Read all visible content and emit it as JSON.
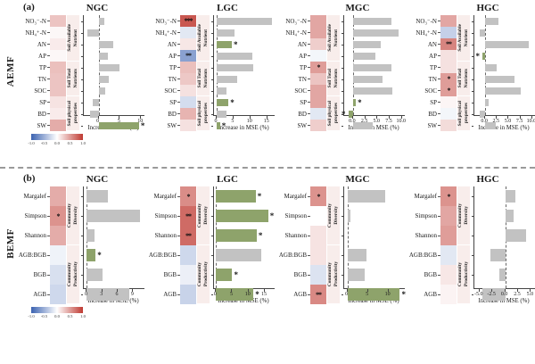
{
  "figure": {
    "separator_style": "dashed",
    "axis_label": "Increase in MSE (%)",
    "colorbar_ticks": [
      "-1.0",
      "-0.5",
      "0.0",
      "0.5",
      "1.0"
    ],
    "colors": {
      "bar_gray": "#c2c2c2",
      "bar_green": "#8ea36b",
      "heat_red_max": "#bf3a32",
      "heat_blue_max": "#3c63b1",
      "category_strip_bg": "#f8edeb"
    }
  },
  "panels": [
    {
      "tag": "(a)",
      "label": "AEMF",
      "categories": [
        "NO₃⁻-N",
        "NH₄⁺-N",
        "AN",
        "AP",
        "TP",
        "TN",
        "SOC",
        "SP",
        "BD",
        "SW"
      ],
      "category_groups": [
        {
          "label": "Soil Available\nNutrient",
          "span": 4
        },
        {
          "label": "Soil Total\nNutrients",
          "span": 3
        },
        {
          "label": "Soil physical\nproperties",
          "span": 3
        }
      ]
    },
    {
      "tag": "(b)",
      "label": "BEMF",
      "categories": [
        "Margalef",
        "Simpson",
        "Shannon",
        "AGB:BGB",
        "BGB",
        "AGB"
      ],
      "category_groups": [
        {
          "label": "Community\nDiversity",
          "span": 3
        },
        {
          "label": "Community\nProductivity",
          "span": 3
        }
      ]
    }
  ],
  "chart_data": [
    {
      "type": "bar",
      "panel": "AEMF",
      "group": "NGC",
      "xlabel": "Increase in MSE (%)",
      "x_ticks": [
        0,
        5,
        10
      ],
      "x_tick_labels": [
        "0",
        "5",
        "10"
      ],
      "xlim": [
        -3.5,
        10.8
      ],
      "values": [
        1.3,
        -2.7,
        3.4,
        2.2,
        5.0,
        2.4,
        1.6,
        -1.5,
        -2.0,
        9.5
      ],
      "bar_colors": [
        "gray",
        "gray",
        "gray",
        "gray",
        "gray",
        "gray",
        "gray",
        "gray",
        "gray",
        "green"
      ],
      "bar_sig": [
        "",
        "",
        "",
        "",
        "",
        "",
        "",
        "",
        "",
        "*"
      ],
      "heat_values": [
        0.3,
        0.04,
        0.1,
        0.04,
        0.32,
        0.3,
        0.3,
        0.14,
        0.1,
        0.42
      ],
      "heat_sig": [
        "",
        "",
        "",
        "",
        "",
        "",
        "",
        "",
        "",
        ""
      ]
    },
    {
      "type": "bar",
      "panel": "AEMF",
      "group": "LGC",
      "xlabel": "Increase in MSE (%)",
      "x_ticks": [
        0,
        5,
        10,
        15
      ],
      "x_tick_labels": [
        "0",
        "5",
        "10",
        "15"
      ],
      "xlim": [
        -0.8,
        17.2
      ],
      "values": [
        16.3,
        5.2,
        4.5,
        10.5,
        10.9,
        6.2,
        2.8,
        3.5,
        2.8,
        1.0
      ],
      "bar_colors": [
        "gray",
        "gray",
        "green",
        "gray",
        "gray",
        "gray",
        "gray",
        "green",
        "gray",
        "green"
      ],
      "bar_sig": [
        "",
        "",
        "*",
        "",
        "",
        "",
        "",
        "*",
        "",
        "*"
      ],
      "heat_values": [
        0.85,
        -0.15,
        0.12,
        -0.6,
        0.32,
        0.28,
        0.15,
        -0.22,
        0.38,
        0.15
      ],
      "heat_sig": [
        "***",
        "",
        "",
        "**",
        "",
        "",
        "",
        "",
        "",
        ""
      ]
    },
    {
      "type": "bar",
      "panel": "AEMF",
      "group": "MGC",
      "xlabel": "Increase in MSE (%)",
      "x_ticks": [
        0,
        2.5,
        5,
        7.5,
        10
      ],
      "x_tick_labels": [
        "0.0",
        "2.5",
        "5.0",
        "7.5",
        "10.0"
      ],
      "xlim": [
        -1.8,
        10.6
      ],
      "values": [
        7.9,
        9.4,
        5.6,
        4.5,
        7.9,
        6.0,
        8.0,
        0.6,
        -0.9,
        4.0
      ],
      "bar_colors": [
        "gray",
        "gray",
        "gray",
        "gray",
        "gray",
        "gray",
        "gray",
        "green",
        "green",
        "gray"
      ],
      "bar_sig": [
        "",
        "",
        "",
        "",
        "",
        "",
        "",
        "*",
        "*",
        ""
      ],
      "heat_values": [
        0.45,
        0.45,
        0.25,
        -0.06,
        0.5,
        0.3,
        0.45,
        0.45,
        -0.15,
        0.25
      ],
      "heat_sig": [
        "",
        "",
        "",
        "",
        "*",
        "",
        "",
        "",
        "",
        ""
      ]
    },
    {
      "type": "bar",
      "panel": "AEMF",
      "group": "HGC",
      "xlabel": "Increase in MSE (%)",
      "x_ticks": [
        0,
        2.5,
        5,
        7.5,
        10
      ],
      "x_tick_labels": [
        "0.0",
        "2.5",
        "5.0",
        "7.5",
        "10.0"
      ],
      "xlim": [
        -2.3,
        10.6
      ],
      "values": [
        2.8,
        -1.2,
        9.2,
        -0.5,
        2.4,
        6.2,
        7.5,
        0.8,
        -1.1,
        2.3
      ],
      "bar_colors": [
        "gray",
        "gray",
        "gray",
        "green",
        "gray",
        "gray",
        "gray",
        "gray",
        "gray",
        "gray"
      ],
      "bar_sig": [
        "",
        "",
        "",
        "*",
        "",
        "",
        "",
        "",
        "",
        ""
      ],
      "heat_values": [
        0.45,
        -0.3,
        0.62,
        0.15,
        0.15,
        0.5,
        0.5,
        0.05,
        -0.06,
        0.18
      ],
      "heat_sig": [
        "",
        "",
        "**",
        "",
        "",
        "*",
        "*",
        "",
        "",
        ""
      ]
    },
    {
      "type": "bar",
      "panel": "BEMF",
      "group": "NGC",
      "xlabel": "Increase in MSE (%)",
      "x_ticks": [
        0,
        3,
        6,
        9
      ],
      "x_tick_labels": [
        "0",
        "3",
        "6",
        "9"
      ],
      "xlim": [
        -0.6,
        11.2
      ],
      "values": [
        4.0,
        10.4,
        1.5,
        1.7,
        3.0,
        8.2
      ],
      "bar_colors": [
        "gray",
        "gray",
        "gray",
        "green",
        "gray",
        "gray"
      ],
      "bar_sig": [
        "",
        "",
        "",
        "*",
        "",
        ""
      ],
      "heat_values": [
        0.42,
        0.55,
        0.42,
        -0.08,
        -0.2,
        -0.25
      ],
      "heat_sig": [
        "",
        "*",
        "",
        "",
        "",
        ""
      ]
    },
    {
      "type": "bar",
      "panel": "BEMF",
      "group": "LGC",
      "xlabel": "Increase in MSE (%)",
      "x_ticks": [
        0,
        5,
        10,
        15
      ],
      "x_tick_labels": [
        "0",
        "5",
        "10",
        "15"
      ],
      "xlim": [
        -0.6,
        18.0
      ],
      "values": [
        12.2,
        16.0,
        12.5,
        13.8,
        5.0,
        11.5
      ],
      "bar_colors": [
        "green",
        "green",
        "green",
        "gray",
        "green",
        "green"
      ],
      "bar_sig": [
        "*",
        "*",
        "*",
        "",
        "*",
        "*"
      ],
      "heat_values": [
        0.58,
        0.75,
        0.75,
        -0.25,
        -0.1,
        -0.28
      ],
      "heat_sig": [
        "*",
        "**",
        "**",
        "",
        "",
        ""
      ]
    },
    {
      "type": "bar",
      "panel": "BEMF",
      "group": "MGC",
      "xlabel": "Increase in MSE (%)",
      "x_ticks": [
        0,
        5,
        10
      ],
      "x_tick_labels": [
        "0",
        "5",
        "10"
      ],
      "xlim": [
        -0.8,
        14.0
      ],
      "values": [
        9.2,
        0.8,
        0.0,
        4.7,
        4.3,
        12.8
      ],
      "bar_colors": [
        "gray",
        "gray",
        "gray",
        "gray",
        "gray",
        "green"
      ],
      "bar_sig": [
        "",
        "",
        "",
        "",
        "",
        "*"
      ],
      "heat_values": [
        0.55,
        0.0,
        0.14,
        0.14,
        -0.18,
        0.6
      ],
      "heat_sig": [
        "*",
        "",
        "",
        "",
        "",
        "**"
      ]
    },
    {
      "type": "bar",
      "panel": "BEMF",
      "group": "HGC",
      "xlabel": "Increase in MSE (%)",
      "x_ticks": [
        -5,
        -2.5,
        0,
        2.5,
        5
      ],
      "x_tick_labels": [
        "-5.0",
        "-2.5",
        "0.0",
        "2.5",
        "5.0"
      ],
      "xlim": [
        -6.0,
        5.8
      ],
      "values": [
        2.0,
        1.7,
        4.0,
        -2.8,
        -1.2,
        -4.5
      ],
      "bar_colors": [
        "gray",
        "gray",
        "gray",
        "gray",
        "gray",
        "gray"
      ],
      "bar_sig": [
        "",
        "",
        "",
        "",
        "",
        ""
      ],
      "heat_values": [
        0.55,
        0.45,
        0.5,
        -0.15,
        0.12,
        0.06
      ],
      "heat_sig": [
        "*",
        "",
        "",
        "",
        "",
        ""
      ]
    }
  ]
}
